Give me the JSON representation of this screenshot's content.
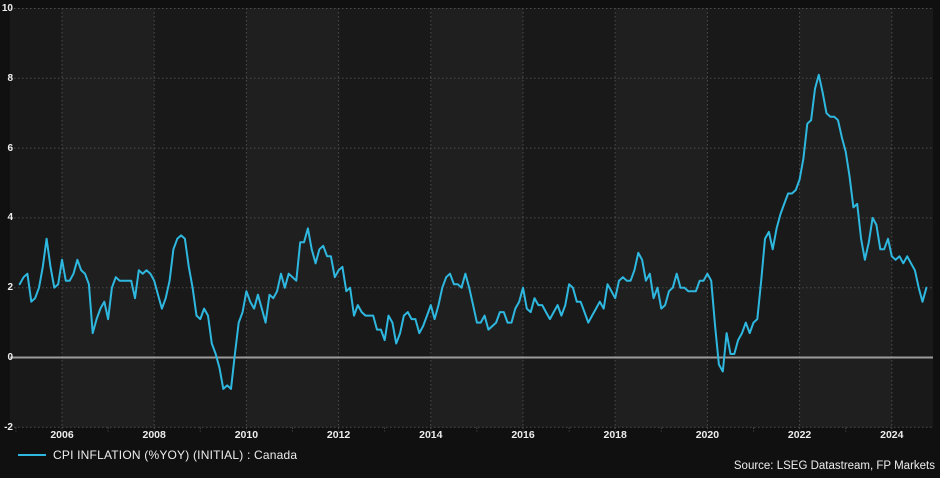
{
  "chart": {
    "legend_label": "CPI INFLATION (%YOY) (INITIAL) : Canada",
    "source_text": "Source: LSEG Datastream, FP Markets"
  },
  "colors": {
    "line": "#2eb8e0",
    "background": "#101010",
    "band_dark": "#191919",
    "band_light": "#1f1f1f",
    "grid": "#4d4d4d",
    "zero_line": "#9c9c9c",
    "text": "#ededed"
  },
  "chart_data": {
    "type": "line",
    "title": "",
    "xlabel": "",
    "ylabel": "",
    "legend_position": "bottom-left",
    "grid": "dotted",
    "ylim": [
      -2,
      10
    ],
    "y_ticks": [
      10,
      8,
      6,
      4,
      2,
      0,
      -2
    ],
    "x_ticks": [
      2006,
      2008,
      2010,
      2012,
      2014,
      2016,
      2018,
      2020,
      2022,
      2024
    ],
    "x_range": [
      "2005-02",
      "2024-10"
    ],
    "series": [
      {
        "name": "CPI INFLATION (%YOY) (INITIAL) : Canada",
        "frequency": "monthly",
        "start_year": 2005,
        "start_month": 2,
        "values": [
          2.1,
          2.3,
          2.4,
          1.6,
          1.7,
          2.0,
          2.6,
          3.4,
          2.6,
          2.0,
          2.1,
          2.8,
          2.2,
          2.2,
          2.4,
          2.8,
          2.5,
          2.4,
          2.1,
          0.7,
          1.1,
          1.4,
          1.6,
          1.1,
          2.0,
          2.3,
          2.2,
          2.2,
          2.2,
          2.2,
          1.7,
          2.5,
          2.4,
          2.5,
          2.4,
          2.2,
          1.8,
          1.4,
          1.7,
          2.2,
          3.1,
          3.4,
          3.5,
          3.4,
          2.6,
          2.0,
          1.2,
          1.1,
          1.4,
          1.2,
          0.4,
          0.1,
          -0.3,
          -0.9,
          -0.8,
          -0.9,
          0.1,
          1.0,
          1.3,
          1.9,
          1.6,
          1.4,
          1.8,
          1.4,
          1.0,
          1.8,
          1.7,
          1.9,
          2.4,
          2.0,
          2.4,
          2.3,
          2.2,
          3.3,
          3.3,
          3.7,
          3.1,
          2.7,
          3.1,
          3.2,
          2.9,
          2.9,
          2.3,
          2.5,
          2.6,
          1.9,
          2.0,
          1.2,
          1.5,
          1.3,
          1.2,
          1.2,
          1.2,
          0.8,
          0.8,
          0.5,
          1.2,
          1.0,
          0.4,
          0.7,
          1.2,
          1.3,
          1.1,
          1.1,
          0.7,
          0.9,
          1.2,
          1.5,
          1.1,
          1.5,
          2.0,
          2.3,
          2.4,
          2.1,
          2.1,
          2.0,
          2.4,
          2.0,
          1.5,
          1.0,
          1.0,
          1.2,
          0.8,
          0.9,
          1.0,
          1.3,
          1.3,
          1.0,
          1.0,
          1.4,
          1.6,
          2.0,
          1.4,
          1.3,
          1.7,
          1.5,
          1.5,
          1.3,
          1.1,
          1.3,
          1.5,
          1.2,
          1.5,
          2.1,
          2.0,
          1.6,
          1.6,
          1.3,
          1.0,
          1.2,
          1.4,
          1.6,
          1.4,
          2.1,
          1.9,
          1.7,
          2.2,
          2.3,
          2.2,
          2.2,
          2.5,
          3.0,
          2.8,
          2.2,
          2.4,
          1.7,
          2.0,
          1.4,
          1.5,
          1.9,
          2.0,
          2.4,
          2.0,
          2.0,
          1.9,
          1.9,
          1.9,
          2.2,
          2.2,
          2.4,
          2.2,
          0.9,
          -0.2,
          -0.4,
          0.7,
          0.1,
          0.1,
          0.5,
          0.7,
          1.0,
          0.7,
          1.0,
          1.1,
          2.2,
          3.4,
          3.6,
          3.1,
          3.7,
          4.1,
          4.4,
          4.7,
          4.7,
          4.8,
          5.1,
          5.7,
          6.7,
          6.8,
          7.7,
          8.1,
          7.6,
          7.0,
          6.9,
          6.9,
          6.8,
          6.3,
          5.9,
          5.2,
          4.3,
          4.4,
          3.4,
          2.8,
          3.3,
          4.0,
          3.8,
          3.1,
          3.1,
          3.4,
          2.9,
          2.8,
          2.9,
          2.7,
          2.9,
          2.7,
          2.5,
          2.0,
          1.6,
          2.0
        ]
      }
    ]
  }
}
